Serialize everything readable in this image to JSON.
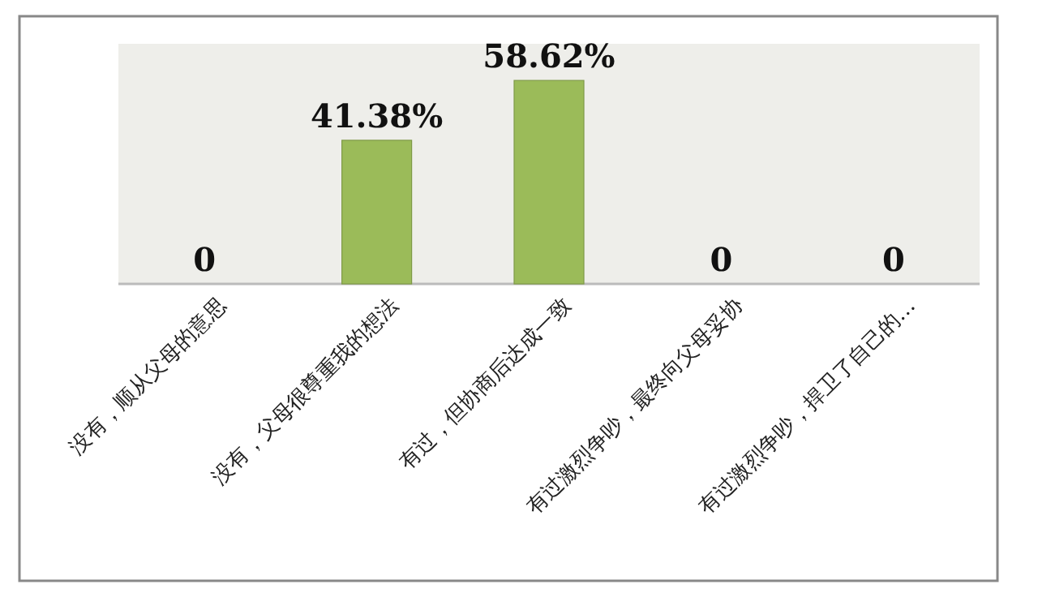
{
  "chart_data": {
    "type": "bar",
    "categories": [
      "没有，顺从父母的意思",
      "没有，父母很尊重我的想法",
      "有过，但协商后达成一致",
      "有过激烈争吵，最终向父母妥协",
      "有过激烈争吵，捍卫了自己的…"
    ],
    "values": [
      0,
      41.38,
      58.62,
      0,
      0
    ],
    "value_labels": [
      "0",
      "41.38%",
      "58.62%",
      "0",
      "0"
    ],
    "color": "#9bbb59"
  }
}
